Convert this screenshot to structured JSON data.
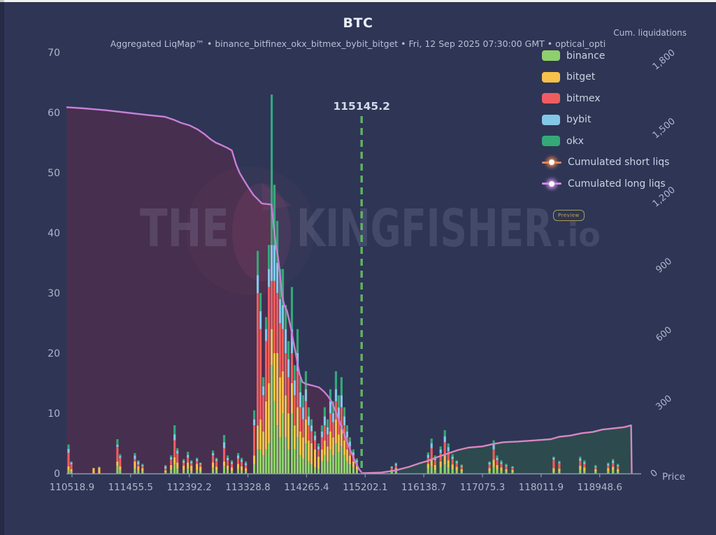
{
  "header": {
    "title": "BTC",
    "subtitle": "Aggregated LiqMap™  •  binance_bitfinex_okx_bitmex_bybit_bitget  •  Fri, 12 Sep 2025 07:30:00 GMT  •  optical_opti",
    "right_axis_title": "Cum. liquidations"
  },
  "watermark": {
    "part1": "THE",
    "part2": "KINGFISHER",
    "part3": ".io",
    "badge": "Preview"
  },
  "legend": {
    "items": [
      {
        "label": "binance",
        "type": "swatch",
        "color": "#8ed06b"
      },
      {
        "label": "bitget",
        "type": "swatch",
        "color": "#f7c04a"
      },
      {
        "label": "bitmex",
        "type": "swatch",
        "color": "#ee5d5d"
      },
      {
        "label": "bybit",
        "type": "swatch",
        "color": "#82c7e8"
      },
      {
        "label": "okx",
        "type": "swatch",
        "color": "#35a877"
      },
      {
        "label": "Cumulated short liqs",
        "type": "line",
        "color": "#f0854d"
      },
      {
        "label": "Cumulated long liqs",
        "type": "line",
        "color": "#cf8be8"
      }
    ]
  },
  "colors": {
    "background": "#2e3555",
    "axis_text": "#aeb7cd",
    "axis_line": "#8f98b0",
    "title_text": "#e9edf8",
    "marker_green": "#5fb55f",
    "marker_label_color": "#d3dae8",
    "watermark_text": "rgba(178,188,209,0.16)",
    "bird_tint": "rgba(170,80,120,0.14)"
  },
  "chart_data": {
    "type": "bar",
    "stacked": true,
    "title": "BTC",
    "xlabel": "Price",
    "grid": false,
    "x_range": [
      110430,
      119700
    ],
    "x_tick_labels": [
      "110518.9",
      "111455.5",
      "112392.2",
      "113328.8",
      "114265.4",
      "115202.1",
      "116138.7",
      "117075.3",
      "118011.9",
      "118948.6"
    ],
    "x_tick_values": [
      110518.9,
      111455.5,
      112392.2,
      113328.8,
      114265.4,
      115202.1,
      116138.7,
      117075.3,
      118011.9,
      118948.6
    ],
    "y_left": {
      "range": [
        0,
        70
      ],
      "ticks": [
        0,
        10,
        20,
        30,
        40,
        50,
        60,
        70
      ]
    },
    "y_right": {
      "title": "Cum. liquidations",
      "range": [
        0,
        1841
      ],
      "ticks": [
        0,
        300,
        600,
        900,
        1200,
        1500,
        1800
      ],
      "tick_labels": [
        "0",
        "300",
        "600",
        "900",
        "1,200",
        "1,500",
        "1,800"
      ]
    },
    "marker_line": {
      "value": 115145.2,
      "label": "115145.2"
    },
    "series_order": [
      "binance",
      "bitget",
      "bitmex",
      "bybit",
      "okx"
    ],
    "bars_format": "[price, binance, bitget, bitmex, bybit, okx] stacked liquidation sizes (left axis units)",
    "bars": [
      [
        110463,
        0.5,
        0.7,
        2.2,
        0.7,
        0.7
      ],
      [
        110508,
        0.3,
        0.4,
        0.8,
        0.3,
        0.2
      ],
      [
        110865,
        0,
        0.9,
        0,
        0,
        0
      ],
      [
        110954,
        0,
        1,
        0,
        0,
        0.1
      ],
      [
        111244,
        1.2,
        0.8,
        2.4,
        0.4,
        0.9
      ],
      [
        111288,
        0.6,
        0.6,
        1.4,
        0.3,
        0.3
      ],
      [
        111523,
        0.8,
        1.2,
        0.4,
        0.6,
        0.4
      ],
      [
        111578,
        0.5,
        0.7,
        0.3,
        0.5,
        0.2
      ],
      [
        111645,
        0.4,
        0.5,
        0.3,
        0.2,
        0.2
      ],
      [
        112013,
        0.2,
        0.3,
        0.3,
        0.4,
        0.2
      ],
      [
        112102,
        0.6,
        0.8,
        0.9,
        0.4,
        0.3
      ],
      [
        112158,
        1.5,
        1.2,
        2.8,
        1,
        1.5
      ],
      [
        112203,
        0.8,
        1,
        1.5,
        0.5,
        0.4
      ],
      [
        112303,
        0.5,
        0.8,
        0.5,
        0.3,
        0.3
      ],
      [
        112370,
        0.8,
        1,
        0.8,
        0.5,
        0.5
      ],
      [
        112426,
        0.4,
        0.9,
        0.4,
        0.3,
        0.2
      ],
      [
        112515,
        0.5,
        1.1,
        0.5,
        0.3,
        0.2
      ],
      [
        112571,
        0.3,
        0.8,
        0.4,
        0.2,
        0.1
      ],
      [
        112771,
        0.9,
        0.9,
        1.2,
        0.4,
        0.4
      ],
      [
        112827,
        0.5,
        0.6,
        1,
        0.3,
        0.2
      ],
      [
        112950,
        1.2,
        0.8,
        2.2,
        1,
        1.2
      ],
      [
        113006,
        0.6,
        0.7,
        0.9,
        0.4,
        0.4
      ],
      [
        113073,
        0.4,
        0.6,
        0.6,
        0.3,
        0.3
      ],
      [
        113173,
        0.7,
        0.9,
        0.9,
        0.5,
        0.4
      ],
      [
        113229,
        0.5,
        0.7,
        0.7,
        0.4,
        0.3
      ],
      [
        113296,
        0.4,
        0.5,
        0.5,
        0.3,
        0.3
      ],
      [
        113430,
        1.5,
        1.5,
        5,
        1,
        1.5
      ],
      [
        113486,
        4,
        4,
        22,
        3,
        4
      ],
      [
        113530,
        4,
        5,
        15,
        3,
        3
      ],
      [
        113575,
        3,
        4,
        6,
        1.5,
        1.5
      ],
      [
        113620,
        4,
        8,
        10,
        2,
        2
      ],
      [
        113664,
        5,
        10,
        16,
        3,
        4
      ],
      [
        113709,
        18,
        6,
        8,
        6,
        25
      ],
      [
        113753,
        12,
        8,
        12,
        6,
        10
      ],
      [
        113798,
        8,
        12,
        10,
        5,
        7
      ],
      [
        113843,
        6,
        10,
        9,
        4,
        5
      ],
      [
        113887,
        10,
        7,
        7,
        4,
        6
      ],
      [
        113932,
        6,
        7,
        7,
        4,
        4
      ],
      [
        113977,
        4,
        6,
        6,
        3,
        3
      ],
      [
        114032,
        10,
        5,
        5,
        4,
        7
      ],
      [
        114077,
        4,
        4,
        5,
        2.5,
        2.5
      ],
      [
        114122,
        6,
        5,
        6,
        3,
        4
      ],
      [
        114166,
        3,
        4,
        4,
        2.5,
        2.5
      ],
      [
        114211,
        2.5,
        3.5,
        3,
        2,
        2
      ],
      [
        114255,
        5,
        4,
        3,
        2,
        3
      ],
      [
        114300,
        2,
        3.5,
        2.5,
        1.5,
        1.5
      ],
      [
        114345,
        1.5,
        3.5,
        2,
        1,
        1
      ],
      [
        114400,
        1,
        3,
        1.5,
        0.8,
        0.7
      ],
      [
        114456,
        0.8,
        2,
        1.2,
        0.5,
        0.5
      ],
      [
        114512,
        2,
        2,
        2,
        1,
        1
      ],
      [
        114556,
        3,
        2.5,
        2.5,
        1.5,
        1.5
      ],
      [
        114601,
        2,
        2.5,
        2,
        1.2,
        1.3
      ],
      [
        114646,
        4,
        3,
        3,
        2,
        2
      ],
      [
        114690,
        3,
        3,
        2.5,
        1.5,
        2
      ],
      [
        114735,
        5,
        4,
        3,
        2,
        3
      ],
      [
        114779,
        3.5,
        3,
        2.5,
        2,
        2
      ],
      [
        114824,
        4.5,
        3.5,
        3,
        2,
        3
      ],
      [
        114869,
        3,
        2.5,
        2.5,
        1.5,
        1.5
      ],
      [
        114913,
        2,
        2,
        2,
        1,
        1
      ],
      [
        114958,
        1.5,
        1.5,
        1.5,
        0.8,
        0.7
      ],
      [
        115014,
        1,
        1,
        1,
        0.5,
        0.5
      ],
      [
        115069,
        0.6,
        0.7,
        0.6,
        0.3,
        0.3
      ],
      [
        115627,
        0.3,
        0.3,
        0.3,
        0.2,
        0.1
      ],
      [
        115694,
        0.4,
        0.5,
        0.4,
        0.3,
        0.2
      ],
      [
        116207,
        0.8,
        0.8,
        1,
        0.5,
        0.4
      ],
      [
        116262,
        1.2,
        1.2,
        1.8,
        0.8,
        0.8
      ],
      [
        116318,
        0.6,
        0.8,
        0.8,
        0.4,
        0.4
      ],
      [
        116407,
        1,
        1,
        1.4,
        0.6,
        0.5
      ],
      [
        116474,
        1.5,
        1.5,
        2.2,
        1,
        1
      ],
      [
        116530,
        1,
        1.2,
        1.5,
        0.7,
        0.6
      ],
      [
        116597,
        0.7,
        0.8,
        0.9,
        0.4,
        0.4
      ],
      [
        116664,
        0.5,
        0.6,
        0.6,
        0.3,
        0.2
      ],
      [
        116742,
        0.3,
        0.4,
        0.4,
        0.2,
        0.2
      ],
      [
        117188,
        0.4,
        0.5,
        0.6,
        0.3,
        0.2
      ],
      [
        117255,
        1.1,
        1.2,
        1.7,
        0.8,
        0.7
      ],
      [
        117310,
        0.6,
        0.8,
        0.8,
        0.4,
        0.4
      ],
      [
        117377,
        0.4,
        0.6,
        0.6,
        0.3,
        0.3
      ],
      [
        117455,
        0.3,
        0.4,
        0.5,
        0.2,
        0.2
      ],
      [
        117556,
        0.2,
        0.4,
        0.3,
        0.2,
        0.1
      ],
      [
        118214,
        0.3,
        0.6,
        1.4,
        0.3,
        0.2
      ],
      [
        118303,
        0.3,
        0.5,
        0.9,
        0.2,
        0.2
      ],
      [
        118637,
        0.6,
        0.7,
        0.8,
        0.4,
        0.3
      ],
      [
        118704,
        0.4,
        0.6,
        0.6,
        0.3,
        0.3
      ],
      [
        118883,
        0.3,
        0.4,
        0.3,
        0.2,
        0.2
      ],
      [
        119083,
        0.4,
        0.5,
        0.4,
        0.3,
        0.2
      ],
      [
        119161,
        0.5,
        0.6,
        0.6,
        0.4,
        0.3
      ],
      [
        119239,
        0.3,
        0.4,
        0.5,
        0.2,
        0.2
      ]
    ],
    "cumulated_long_liqs": {
      "line_color": "#c77fd6",
      "fill_color": "#472f4f",
      "points": [
        [
          110430,
          60.9
        ],
        [
          110720,
          60.7
        ],
        [
          111054,
          60.4
        ],
        [
          111389,
          60.0
        ],
        [
          111723,
          59.6
        ],
        [
          112002,
          59.3
        ],
        [
          112147,
          58.8
        ],
        [
          112258,
          58.3
        ],
        [
          112392,
          57.9
        ],
        [
          112526,
          57.2
        ],
        [
          112638,
          56.4
        ],
        [
          112727,
          55.6
        ],
        [
          112816,
          55.0
        ],
        [
          112905,
          54.6
        ],
        [
          113006,
          54.1
        ],
        [
          113073,
          53.7
        ],
        [
          113139,
          51.4
        ],
        [
          113195,
          50.0
        ],
        [
          113262,
          48.8
        ],
        [
          113340,
          47.5
        ],
        [
          113418,
          46.3
        ],
        [
          113485,
          45.6
        ],
        [
          113552,
          44.9
        ],
        [
          113708,
          44.7
        ],
        [
          113741,
          41.0
        ],
        [
          113775,
          38.0
        ],
        [
          113808,
          36.0
        ],
        [
          113843,
          33.0
        ],
        [
          113876,
          29.5
        ],
        [
          113909,
          28.0
        ],
        [
          113954,
          27.0
        ],
        [
          113987,
          25.5
        ],
        [
          114020,
          24.0
        ],
        [
          114054,
          22.0
        ],
        [
          114087,
          20.3
        ],
        [
          114121,
          18.3
        ],
        [
          114154,
          16.5
        ],
        [
          114199,
          15.2
        ],
        [
          114254,
          14.9
        ],
        [
          114366,
          14.6
        ],
        [
          114466,
          14.3
        ],
        [
          114544,
          13.6
        ],
        [
          114611,
          12.8
        ],
        [
          114667,
          11.9
        ],
        [
          114723,
          10.5
        ],
        [
          114778,
          9.0
        ],
        [
          114834,
          7.4
        ],
        [
          114890,
          5.9
        ],
        [
          114946,
          4.4
        ],
        [
          115001,
          3.0
        ],
        [
          115057,
          1.6
        ],
        [
          115112,
          0.6
        ],
        [
          115146,
          0.15
        ]
      ]
    },
    "cumulated_short_liqs": {
      "line_color": "#d886c0",
      "fill_color": "#2d4a4e",
      "points": [
        [
          115146,
          0.05
        ],
        [
          115458,
          0.15
        ],
        [
          115681,
          0.5
        ],
        [
          115904,
          1.1
        ],
        [
          116072,
          1.7
        ],
        [
          116205,
          2.1
        ],
        [
          116350,
          2.7
        ],
        [
          116518,
          3.3
        ],
        [
          116685,
          3.9
        ],
        [
          116852,
          4.3
        ],
        [
          117075,
          4.5
        ],
        [
          117242,
          4.9
        ],
        [
          117410,
          5.2
        ],
        [
          117633,
          5.3
        ],
        [
          117911,
          5.5
        ],
        [
          118168,
          5.7
        ],
        [
          118302,
          6.1
        ],
        [
          118480,
          6.3
        ],
        [
          118659,
          6.7
        ],
        [
          118837,
          6.9
        ],
        [
          118993,
          7.3
        ],
        [
          119172,
          7.5
        ],
        [
          119339,
          7.7
        ],
        [
          119450,
          8.0
        ],
        [
          119460,
          0.05
        ]
      ]
    }
  }
}
